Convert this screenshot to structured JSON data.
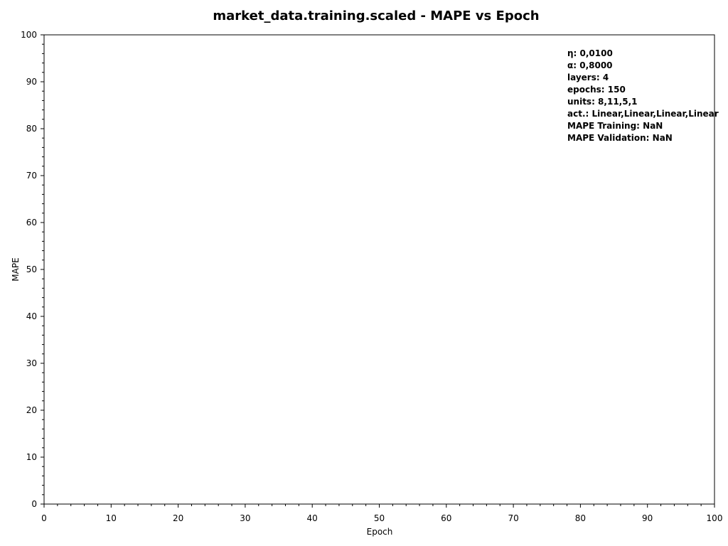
{
  "chart_data": {
    "type": "line",
    "title": "market_data.training.scaled - MAPE vs Epoch",
    "xlabel": "Epoch",
    "ylabel": "MAPE",
    "xlim": [
      0,
      100
    ],
    "ylim": [
      0,
      100
    ],
    "x_ticks": [
      "0",
      "10",
      "20",
      "30",
      "40",
      "50",
      "60",
      "70",
      "80",
      "90",
      "100"
    ],
    "y_ticks": [
      "0",
      "10",
      "20",
      "30",
      "40",
      "50",
      "60",
      "70",
      "80",
      "90",
      "100"
    ],
    "grid": false,
    "series": [],
    "annotation_placement": "top-right",
    "annotation": [
      "η: 0,0100",
      "α: 0,8000",
      "layers: 4",
      "epochs: 150",
      "units: 8,11,5,1",
      "act.: Linear,Linear,Linear,Linear",
      "MAPE Training: NaN",
      "MAPE Validation: NaN"
    ]
  }
}
